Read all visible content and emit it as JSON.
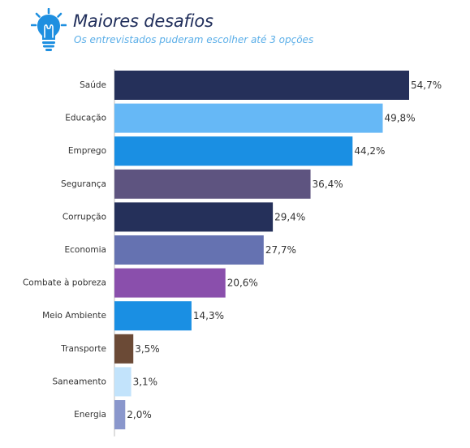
{
  "header": {
    "title": "Maiores desafios",
    "subtitle": "Os entrevistados puderam escolher até 3 opções",
    "icon": "lightbulb-icon",
    "icon_color": "#1e8fe0"
  },
  "chart_data": {
    "type": "bar",
    "orientation": "horizontal",
    "title": "Maiores desafios",
    "subtitle": "Os entrevistados puderam escolher até 3 opções",
    "xlabel": "",
    "ylabel": "",
    "xlim": [
      0,
      55
    ],
    "grid": false,
    "legend": "none",
    "categories": [
      "Saúde",
      "Educação",
      "Emprego",
      "Segurança",
      "Corrupção",
      "Economia",
      "Combate à pobreza",
      "Meio Ambiente",
      "Transporte",
      "Saneamento",
      "Energia"
    ],
    "values": [
      54.7,
      49.8,
      44.2,
      36.4,
      29.4,
      27.7,
      20.6,
      14.3,
      3.5,
      3.1,
      2.0
    ],
    "value_labels": [
      "54,7%",
      "49,8%",
      "44,2%",
      "36,4%",
      "29,4%",
      "27,7%",
      "20,6%",
      "14,3%",
      "3,5%",
      "3,1%",
      "2,0%"
    ],
    "colors": [
      "#25305a",
      "#66b8f6",
      "#1a8fe3",
      "#5e5480",
      "#25305a",
      "#6572b1",
      "#8a4fac",
      "#1a8fe3",
      "#6b4a36",
      "#c2e3fb",
      "#8a97cc"
    ]
  }
}
